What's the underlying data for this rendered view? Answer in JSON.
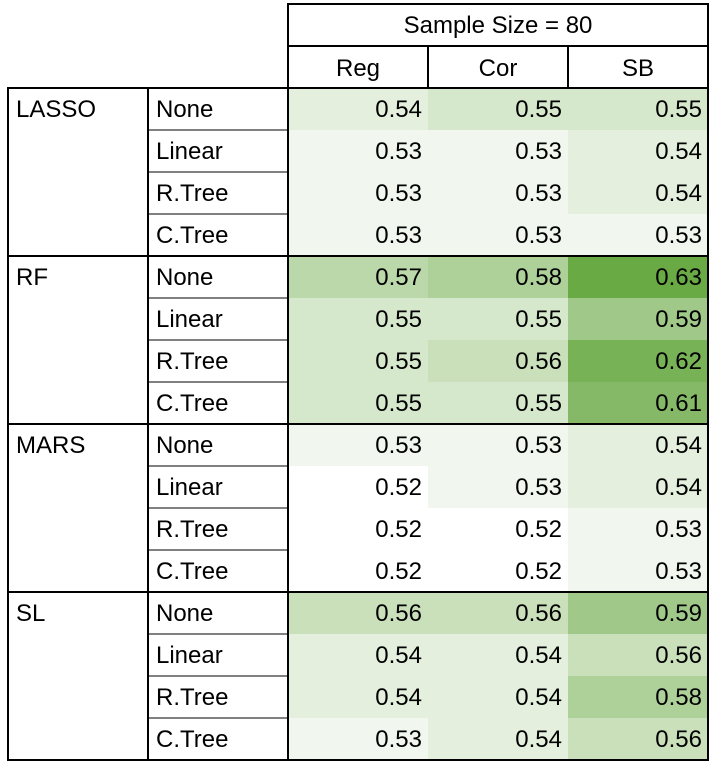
{
  "chart_data": {
    "type": "heatmap",
    "title": "Sample Size = 80",
    "columns": [
      "Reg",
      "Cor",
      "SB"
    ],
    "groups": [
      {
        "name": "LASSO",
        "rows": [
          {
            "label": "None",
            "values": [
              "0.54",
              "0.55",
              "0.55"
            ]
          },
          {
            "label": "Linear",
            "values": [
              "0.53",
              "0.53",
              "0.54"
            ]
          },
          {
            "label": "R.Tree",
            "values": [
              "0.53",
              "0.53",
              "0.54"
            ]
          },
          {
            "label": "C.Tree",
            "values": [
              "0.53",
              "0.53",
              "0.53"
            ]
          }
        ]
      },
      {
        "name": "RF",
        "rows": [
          {
            "label": "None",
            "values": [
              "0.57",
              "0.58",
              "0.63"
            ]
          },
          {
            "label": "Linear",
            "values": [
              "0.55",
              "0.55",
              "0.59"
            ]
          },
          {
            "label": "R.Tree",
            "values": [
              "0.55",
              "0.56",
              "0.62"
            ]
          },
          {
            "label": "C.Tree",
            "values": [
              "0.55",
              "0.55",
              "0.61"
            ]
          }
        ]
      },
      {
        "name": "MARS",
        "rows": [
          {
            "label": "None",
            "values": [
              "0.53",
              "0.53",
              "0.54"
            ]
          },
          {
            "label": "Linear",
            "values": [
              "0.52",
              "0.53",
              "0.54"
            ]
          },
          {
            "label": "R.Tree",
            "values": [
              "0.52",
              "0.52",
              "0.53"
            ]
          },
          {
            "label": "C.Tree",
            "values": [
              "0.52",
              "0.52",
              "0.53"
            ]
          }
        ]
      },
      {
        "name": "SL",
        "rows": [
          {
            "label": "None",
            "values": [
              "0.56",
              "0.56",
              "0.59"
            ]
          },
          {
            "label": "Linear",
            "values": [
              "0.54",
              "0.54",
              "0.56"
            ]
          },
          {
            "label": "R.Tree",
            "values": [
              "0.54",
              "0.54",
              "0.58"
            ]
          },
          {
            "label": "C.Tree",
            "values": [
              "0.53",
              "0.54",
              "0.56"
            ]
          }
        ]
      }
    ],
    "color_scale": {
      "low": "#ffffff",
      "high": "#6aaa45",
      "min": 0.52,
      "max": 0.63
    }
  }
}
